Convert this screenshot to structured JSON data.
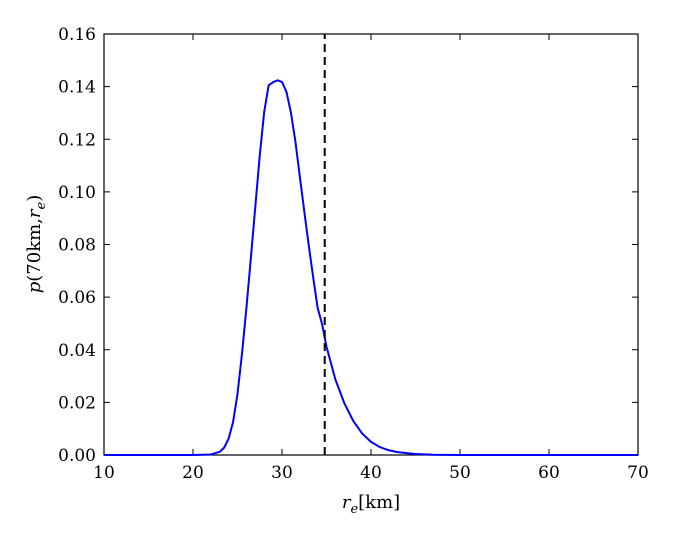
{
  "chart_data": {
    "type": "line",
    "xlabel": {
      "var": "r",
      "sub": "e",
      "unit": "[km]"
    },
    "ylabel": {
      "pre": "p",
      "args": "(70km,",
      "var": "r",
      "sub": "e",
      "post": ")"
    },
    "xlim": [
      10,
      70
    ],
    "ylim": [
      0,
      0.16
    ],
    "xticks": [
      10,
      20,
      30,
      40,
      50,
      60,
      70
    ],
    "xtick_labels": [
      "10",
      "20",
      "30",
      "40",
      "50",
      "60",
      "70"
    ],
    "yticks": [
      0,
      0.02,
      0.04,
      0.06,
      0.08,
      0.1,
      0.12,
      0.14,
      0.16
    ],
    "ytick_labels": [
      "0.00",
      "0.02",
      "0.04",
      "0.06",
      "0.08",
      "0.10",
      "0.12",
      "0.14",
      "0.16"
    ],
    "grid": false,
    "series": [
      {
        "color": "#0000ff",
        "style": "solid",
        "x": [
          10,
          20,
          22,
          23,
          23.5,
          24,
          24.5,
          25,
          25.5,
          26,
          26.5,
          27,
          27.5,
          28,
          28.5,
          29,
          29.5,
          30,
          30.5,
          31,
          31.5,
          32,
          32.5,
          33,
          33.5,
          34,
          34.5,
          35,
          36,
          37,
          38,
          39,
          40,
          41,
          42,
          43,
          44,
          45,
          47,
          50,
          55,
          60,
          70
        ],
        "y": [
          0,
          0,
          0.0002,
          0.0012,
          0.0028,
          0.0062,
          0.0125,
          0.0232,
          0.0383,
          0.0558,
          0.0748,
          0.0943,
          0.1138,
          0.1304,
          0.1405,
          0.1417,
          0.1424,
          0.1418,
          0.138,
          0.1302,
          0.1193,
          0.1059,
          0.0927,
          0.0798,
          0.0676,
          0.056,
          0.0498,
          0.0412,
          0.0287,
          0.0197,
          0.013,
          0.0082,
          0.005,
          0.003,
          0.0018,
          0.0011,
          0.0007,
          0.0004,
          0.0001,
          0,
          0,
          0,
          0
        ]
      },
      {
        "color": "#000000",
        "style": "dashed",
        "x": [
          34.8,
          34.8
        ],
        "y": [
          0,
          0.16
        ]
      }
    ]
  }
}
